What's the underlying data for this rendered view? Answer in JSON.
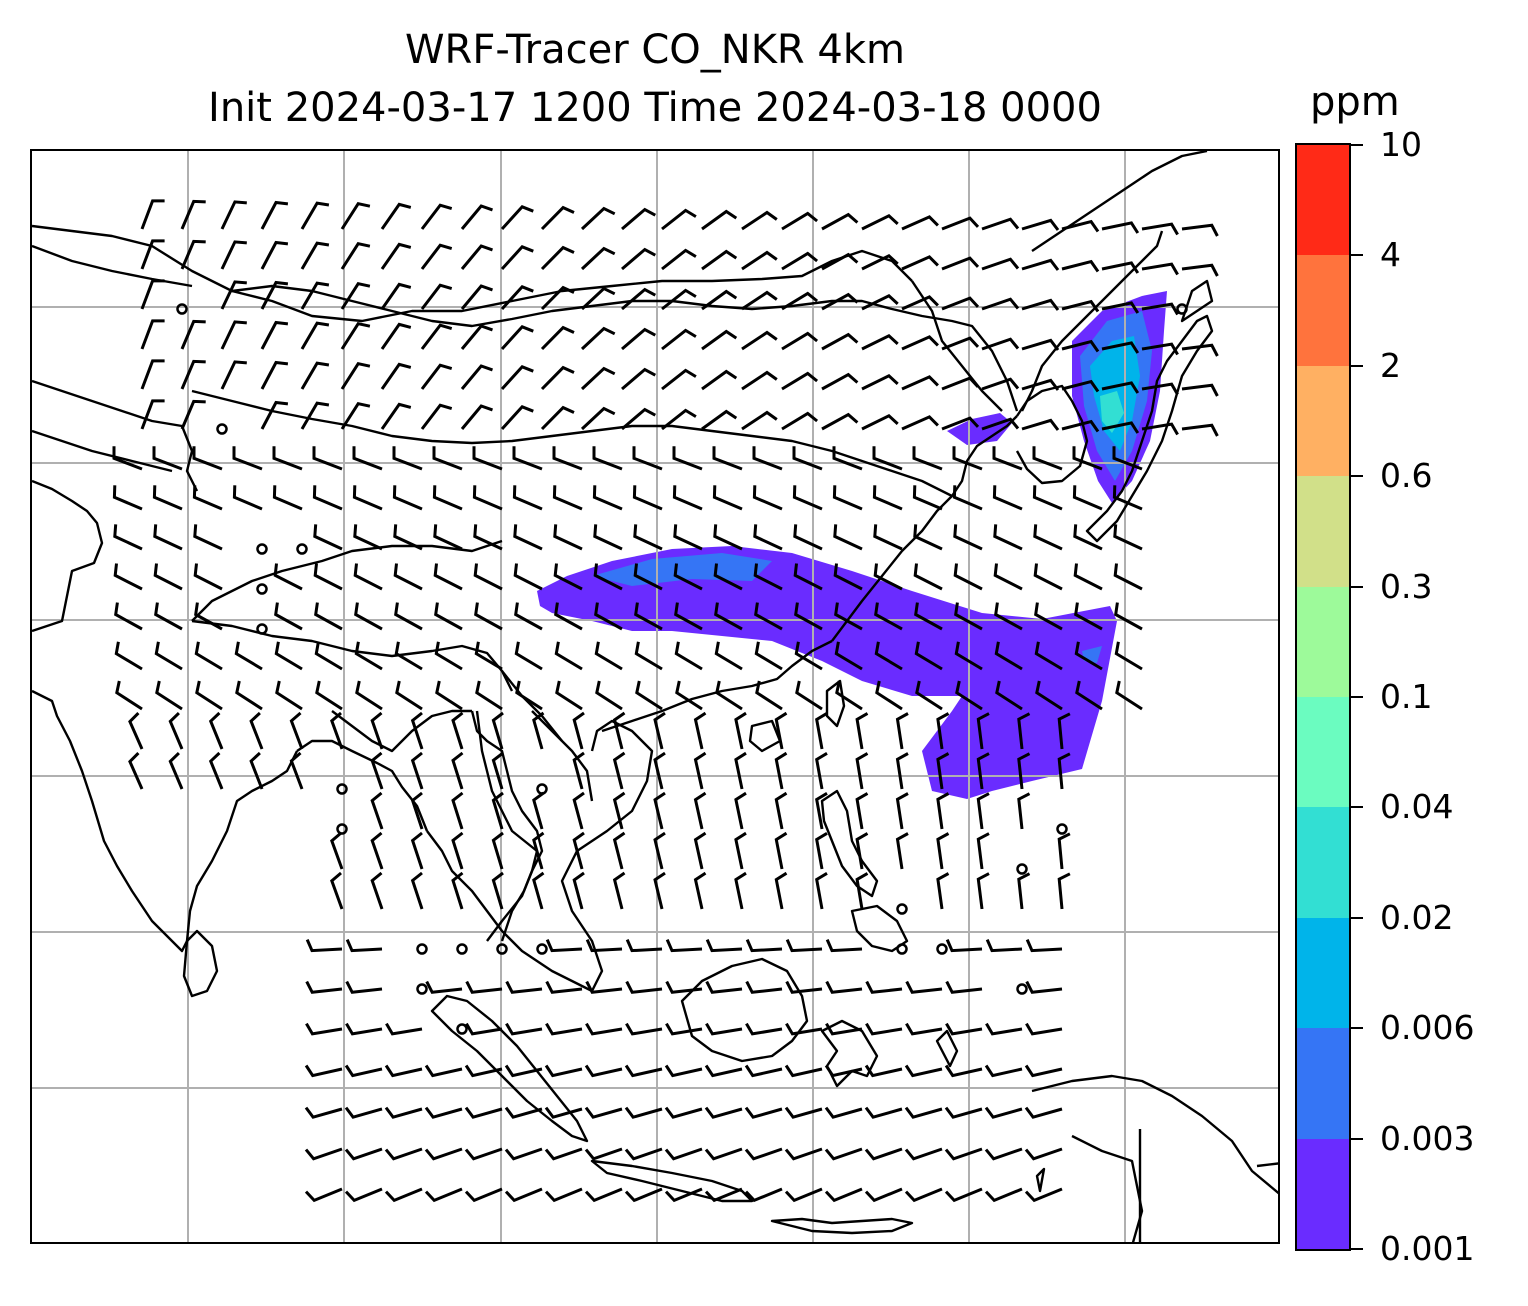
{
  "title": {
    "line1": "WRF-Tracer CO_NKR 4km",
    "line2": "Init 2024-03-17 1200 Time 2024-03-18 0000"
  },
  "colorbar": {
    "unit": "ppm",
    "levels": [
      "0.001",
      "0.003",
      "0.006",
      "0.02",
      "0.04",
      "0.1",
      "0.3",
      "0.6",
      "2",
      "4",
      "10"
    ],
    "colors": [
      "#6a2cff",
      "#3575f5",
      "#00b4ea",
      "#32dfd3",
      "#6bfcc0",
      "#9dfa9a",
      "#d1e089",
      "#ffb062",
      "#ff733d",
      "#ff2a17"
    ]
  },
  "map": {
    "gridlines": true,
    "coastline_color": "#000000",
    "grid_color": "#b0b0b0",
    "plume_colors": {
      "outer": "#6a2cff",
      "mid": "#3575f5",
      "inner": "#00b4ea",
      "core": "#32dfd3"
    },
    "legend_location": "right"
  }
}
